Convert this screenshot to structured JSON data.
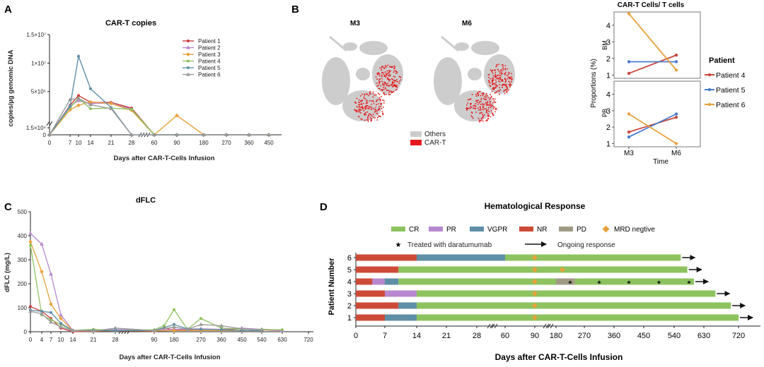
{
  "panels": {
    "A": "A",
    "B": "B",
    "C": "C",
    "D": "D"
  },
  "colors": {
    "p1": "#cc3b3b",
    "p2": "#b888cf",
    "p3": "#e8a23c",
    "p4": "#8dc35f",
    "p5": "#5e8fa6",
    "p6": "#9a9a9a",
    "cr": "#8dc35f",
    "pr": "#b888cf",
    "vgpr": "#5e8fa6",
    "nr": "#cc4b37",
    "pd": "#a09a84",
    "mrd": "#e8a23c",
    "umap_other": "#cdcdcd",
    "umap_cart": "#e41a1c",
    "b4": "#c8473d",
    "b5": "#4a7bd0",
    "b6": "#e8a23c"
  },
  "umap": {
    "labels": [
      "M3",
      "M6"
    ],
    "legend": [
      {
        "label": "Others"
      },
      {
        "label": "CAR-T"
      }
    ]
  },
  "chart_data": [
    {
      "id": "A",
      "type": "line",
      "title": "CAR-T copies",
      "xlabel": "Days after CAR-T-Cells Infusion",
      "ylabel": "copies/µg genomic DNA",
      "x": [
        0,
        7,
        10,
        14,
        21,
        28,
        60,
        90,
        180,
        270,
        360,
        450
      ],
      "xticks": [
        "0",
        "7",
        "10",
        "14",
        "21",
        "28",
        "60",
        "90",
        "180",
        "270",
        "360",
        "450"
      ],
      "yticks": [
        {
          "v": 0,
          "label": "0"
        },
        {
          "v": 15000,
          "label": "1.5×10⁴"
        },
        {
          "v": 5000000,
          "label": "5×10⁶"
        },
        {
          "v": 10000000,
          "label": "1×10⁷"
        },
        {
          "v": 15000000,
          "label": "1.5×10⁷"
        }
      ],
      "ylim": [
        0,
        15000000
      ],
      "series": [
        {
          "name": "Patient 1",
          "color": "p1",
          "values": [
            0,
            2600000,
            4300000,
            3100000,
            3100000,
            2100000,
            0,
            0,
            0,
            0,
            0,
            0
          ]
        },
        {
          "name": "Patient 2",
          "color": "p2",
          "values": [
            0,
            2500000,
            3400000,
            2900000,
            3000000,
            1900000,
            0,
            0,
            0,
            0,
            0,
            0
          ]
        },
        {
          "name": "Patient 3",
          "color": "p3",
          "values": [
            0,
            1800000,
            2600000,
            3200000,
            2900000,
            1700000,
            0,
            800000,
            0,
            0,
            0,
            0
          ]
        },
        {
          "name": "Patient 4",
          "color": "p4",
          "values": [
            0,
            2200000,
            3800000,
            2000000,
            2100000,
            1900000,
            0,
            0,
            0,
            0,
            0,
            0
          ]
        },
        {
          "name": "Patient 5",
          "color": "p5",
          "values": [
            0,
            2400000,
            11200000,
            5500000,
            2200000,
            0,
            0,
            0,
            0,
            0,
            0,
            0
          ]
        },
        {
          "name": "Patient 6",
          "color": "p6",
          "values": [
            0,
            3600000,
            3800000,
            2700000,
            2000000,
            0,
            0,
            0,
            0,
            0,
            0,
            0
          ]
        }
      ]
    },
    {
      "id": "B",
      "type": "line",
      "title": "CAR-T Cells/ T cells",
      "xlabel": "Time",
      "ylabel": "Proportions (%)",
      "x": [
        "M3",
        "M6"
      ],
      "facets": [
        {
          "name": "BM",
          "ylim": [
            0.8,
            4.8
          ],
          "yticks": [
            1,
            2,
            3,
            4
          ],
          "series": [
            {
              "name": "Patient 4",
              "color": "b4",
              "values": [
                1.1,
                2.2
              ]
            },
            {
              "name": "Patient 5",
              "color": "b5",
              "values": [
                1.8,
                1.8
              ]
            },
            {
              "name": "Patient 6",
              "color": "b6",
              "values": [
                4.7,
                1.3
              ]
            }
          ]
        },
        {
          "name": "PB",
          "ylim": [
            0.8,
            4.8
          ],
          "yticks": [
            1,
            2,
            3,
            4
          ],
          "series": [
            {
              "name": "Patient 4",
              "color": "b4",
              "values": [
                1.7,
                2.6
              ]
            },
            {
              "name": "Patient 5",
              "color": "b5",
              "values": [
                1.4,
                2.8
              ]
            },
            {
              "name": "Patient 6",
              "color": "b6",
              "values": [
                2.8,
                1.0
              ]
            }
          ]
        }
      ],
      "legend_title": "Patient",
      "legend": [
        "Patient 4",
        "Patient 5",
        "Patient 6"
      ]
    },
    {
      "id": "C",
      "type": "line",
      "title": "dFLC",
      "xlabel": "Days after CAR-T-Cells Infusion",
      "ylabel": "dFLC (mg/L)",
      "xticks": [
        "0",
        "4",
        "7",
        "10",
        "14",
        "21",
        "28",
        "90",
        "180",
        "270",
        "360",
        "450",
        "540",
        "630",
        "720"
      ],
      "yticks": [
        0,
        100,
        200,
        300,
        400,
        500
      ],
      "ylim": [
        0,
        500
      ],
      "series": [
        {
          "name": "Patient 1",
          "color": "p1",
          "points": [
            [
              0,
              105
            ],
            [
              4,
              85
            ],
            [
              7,
              55
            ],
            [
              10,
              15
            ],
            [
              14,
              0
            ],
            [
              21,
              2
            ],
            [
              28,
              5
            ],
            [
              90,
              2
            ],
            [
              135,
              15
            ],
            [
              180,
              8
            ],
            [
              270,
              10
            ],
            [
              360,
              8
            ],
            [
              450,
              12
            ],
            [
              540,
              8
            ],
            [
              630,
              5
            ]
          ]
        },
        {
          "name": "Patient 2",
          "color": "p2",
          "points": [
            [
              0,
              410
            ],
            [
              4,
              365
            ],
            [
              7,
              240
            ],
            [
              10,
              70
            ],
            [
              14,
              5
            ],
            [
              21,
              5
            ],
            [
              28,
              10
            ],
            [
              90,
              5
            ],
            [
              180,
              10
            ],
            [
              270,
              12
            ],
            [
              360,
              10
            ],
            [
              450,
              15
            ],
            [
              540,
              10
            ],
            [
              630,
              5
            ]
          ]
        },
        {
          "name": "Patient 3",
          "color": "p3",
          "points": [
            [
              0,
              375
            ],
            [
              4,
              250
            ],
            [
              7,
              115
            ],
            [
              10,
              55
            ],
            [
              14,
              5
            ],
            [
              21,
              3
            ],
            [
              28,
              5
            ],
            [
              90,
              3
            ],
            [
              180,
              5
            ],
            [
              270,
              5
            ],
            [
              360,
              5
            ],
            [
              450,
              5
            ],
            [
              540,
              5
            ]
          ]
        },
        {
          "name": "Patient 4",
          "color": "p4",
          "points": [
            [
              0,
              360
            ],
            [
              4,
              70
            ],
            [
              7,
              50
            ],
            [
              10,
              30
            ],
            [
              14,
              5
            ],
            [
              21,
              10
            ],
            [
              28,
              5
            ],
            [
              90,
              8
            ],
            [
              135,
              25
            ],
            [
              180,
              92
            ],
            [
              225,
              10
            ],
            [
              270,
              55
            ],
            [
              360,
              15
            ],
            [
              450,
              10
            ],
            [
              540,
              10
            ],
            [
              630,
              8
            ]
          ]
        },
        {
          "name": "Patient 5",
          "color": "p5",
          "points": [
            [
              0,
              90
            ],
            [
              4,
              85
            ],
            [
              7,
              80
            ],
            [
              10,
              35
            ],
            [
              14,
              5
            ],
            [
              21,
              5
            ],
            [
              28,
              5
            ],
            [
              90,
              5
            ],
            [
              180,
              30
            ],
            [
              225,
              12
            ],
            [
              270,
              10
            ],
            [
              360,
              8
            ],
            [
              450,
              5
            ],
            [
              540,
              5
            ]
          ]
        },
        {
          "name": "Patient 6",
          "color": "p6",
          "points": [
            [
              0,
              85
            ],
            [
              4,
              75
            ],
            [
              7,
              40
            ],
            [
              10,
              20
            ],
            [
              14,
              5
            ],
            [
              21,
              3
            ],
            [
              28,
              15
            ],
            [
              90,
              5
            ],
            [
              180,
              20
            ],
            [
              225,
              10
            ],
            [
              270,
              30
            ],
            [
              360,
              25
            ],
            [
              450,
              12
            ],
            [
              540,
              8
            ]
          ]
        }
      ]
    },
    {
      "id": "D",
      "type": "bar",
      "title": "Hematological Response",
      "xlabel": "Days after CAR-T-Cells Infusion",
      "ylabel": "Patient Number",
      "xticks": [
        "0",
        "7",
        "14",
        "21",
        "28",
        "60",
        "90",
        "180",
        "270",
        "360",
        "450",
        "540",
        "630",
        "720"
      ],
      "legend": [
        {
          "key": "cr",
          "label": "CR"
        },
        {
          "key": "pr",
          "label": "PR"
        },
        {
          "key": "vgpr",
          "label": "VGPR"
        },
        {
          "key": "nr",
          "label": "NR"
        },
        {
          "key": "pd",
          "label": "PD"
        },
        {
          "key": "mrd",
          "label": "MRD negtive"
        }
      ],
      "legend2": {
        "star": "Treated with daratumumab",
        "arrow": "Ongoing response"
      },
      "patients": [
        {
          "label": "6",
          "segments": [
            [
              0,
              14,
              "nr"
            ],
            [
              14,
              60,
              "vgpr"
            ],
            [
              60,
              560,
              "cr"
            ]
          ],
          "mrd": [
            90
          ],
          "stars": [],
          "ongoing": true
        },
        {
          "label": "5",
          "segments": [
            [
              0,
              10,
              "nr"
            ],
            [
              10,
              580,
              "cr"
            ]
          ],
          "mrd": [
            90,
            200
          ],
          "stars": [],
          "ongoing": true
        },
        {
          "label": "4",
          "segments": [
            [
              0,
              4,
              "nr"
            ],
            [
              4,
              7,
              "pr"
            ],
            [
              7,
              10,
              "vgpr"
            ],
            [
              10,
              180,
              "cr"
            ],
            [
              180,
              240,
              "pd"
            ],
            [
              240,
              600,
              "cr"
            ]
          ],
          "mrd": [
            90
          ],
          "stars": [
            225,
            315,
            405,
            495,
            585
          ],
          "ongoing": true
        },
        {
          "label": "3",
          "segments": [
            [
              0,
              7,
              "nr"
            ],
            [
              7,
              14,
              "pr"
            ],
            [
              14,
              660,
              "cr"
            ]
          ],
          "mrd": [
            90
          ],
          "stars": [],
          "ongoing": true
        },
        {
          "label": "2",
          "segments": [
            [
              0,
              10,
              "nr"
            ],
            [
              10,
              14,
              "vgpr"
            ],
            [
              14,
              700,
              "cr"
            ]
          ],
          "mrd": [
            90
          ],
          "stars": [],
          "ongoing": true
        },
        {
          "label": "1",
          "segments": [
            [
              0,
              7,
              "nr"
            ],
            [
              7,
              14,
              "vgpr"
            ],
            [
              14,
              750,
              "cr"
            ]
          ],
          "mrd": [
            90
          ],
          "stars": [],
          "ongoing": true
        }
      ]
    }
  ]
}
